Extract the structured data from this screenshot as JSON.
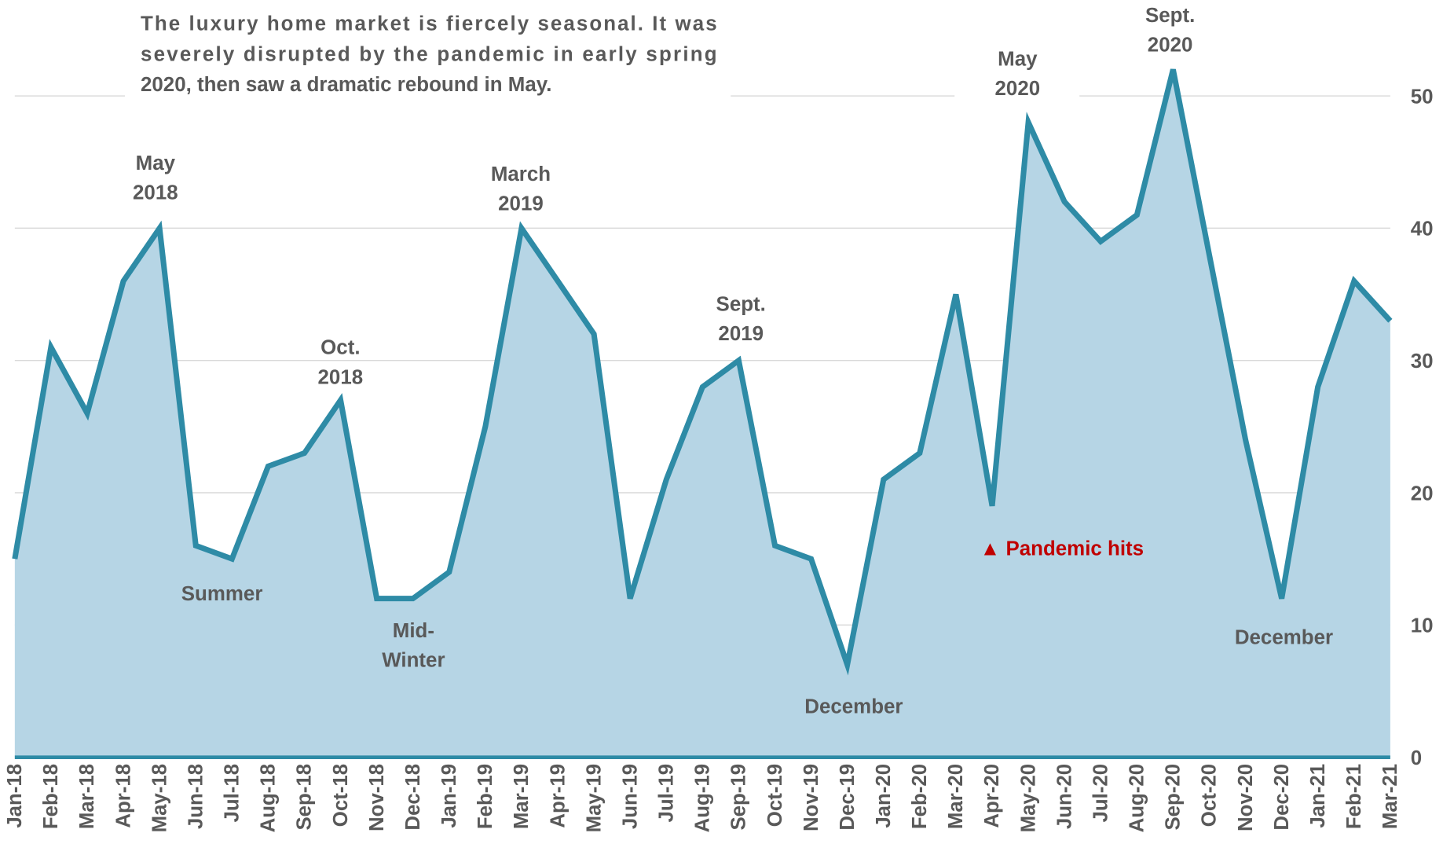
{
  "chart_data": {
    "type": "area",
    "title_lines": [
      "The luxury home market is fiercely seasonal. It was",
      "severely disrupted by the pandemic in early spring",
      "2020, then saw a dramatic rebound in May."
    ],
    "categories": [
      "Jan-18",
      "Feb-18",
      "Mar-18",
      "Apr-18",
      "May-18",
      "Jun-18",
      "Jul-18",
      "Aug-18",
      "Sep-18",
      "Oct-18",
      "Nov-18",
      "Dec-18",
      "Jan-19",
      "Feb-19",
      "Mar-19",
      "Apr-19",
      "May-19",
      "Jun-19",
      "Jul-19",
      "Aug-19",
      "Sep-19",
      "Oct-19",
      "Nov-19",
      "Dec-19",
      "Jan-20",
      "Feb-20",
      "Mar-20",
      "Apr-20",
      "May-20",
      "Jun-20",
      "Jul-20",
      "Aug-20",
      "Sep-20",
      "Oct-20",
      "Nov-20",
      "Dec-20",
      "Jan-21",
      "Feb-21",
      "Mar-21"
    ],
    "values": [
      15,
      31,
      26,
      36,
      40,
      16,
      15,
      22,
      23,
      27,
      12,
      12,
      14,
      25,
      40,
      36,
      32,
      12,
      21,
      28,
      30,
      16,
      15,
      7,
      21,
      23,
      35,
      19,
      48,
      42,
      39,
      41,
      52,
      38,
      24,
      12,
      28,
      36,
      33
    ],
    "color": "#2e8ba6",
    "fill": "#b6d5e5",
    "ylim": [
      0,
      54
    ],
    "yticks": [
      0,
      10,
      20,
      30,
      40,
      50
    ],
    "grid": true,
    "y_axis_side": "right",
    "annotations": [
      {
        "lines": [
          "May",
          "2018"
        ]
      },
      {
        "lines": [
          "Oct.",
          "2018"
        ]
      },
      {
        "lines": [
          "March",
          "2019"
        ]
      },
      {
        "lines": [
          "Sept.",
          "2019"
        ]
      },
      {
        "lines": [
          "May",
          "2020"
        ]
      },
      {
        "lines": [
          "Sept.",
          "2020"
        ]
      },
      {
        "lines": [
          "Summer"
        ]
      },
      {
        "lines": [
          "Mid-",
          "Winter"
        ]
      },
      {
        "lines": [
          "December"
        ]
      },
      {
        "lines": [
          "December"
        ]
      },
      {
        "lines": [
          "▲ Pandemic hits"
        ],
        "color": "#c00000"
      }
    ]
  }
}
